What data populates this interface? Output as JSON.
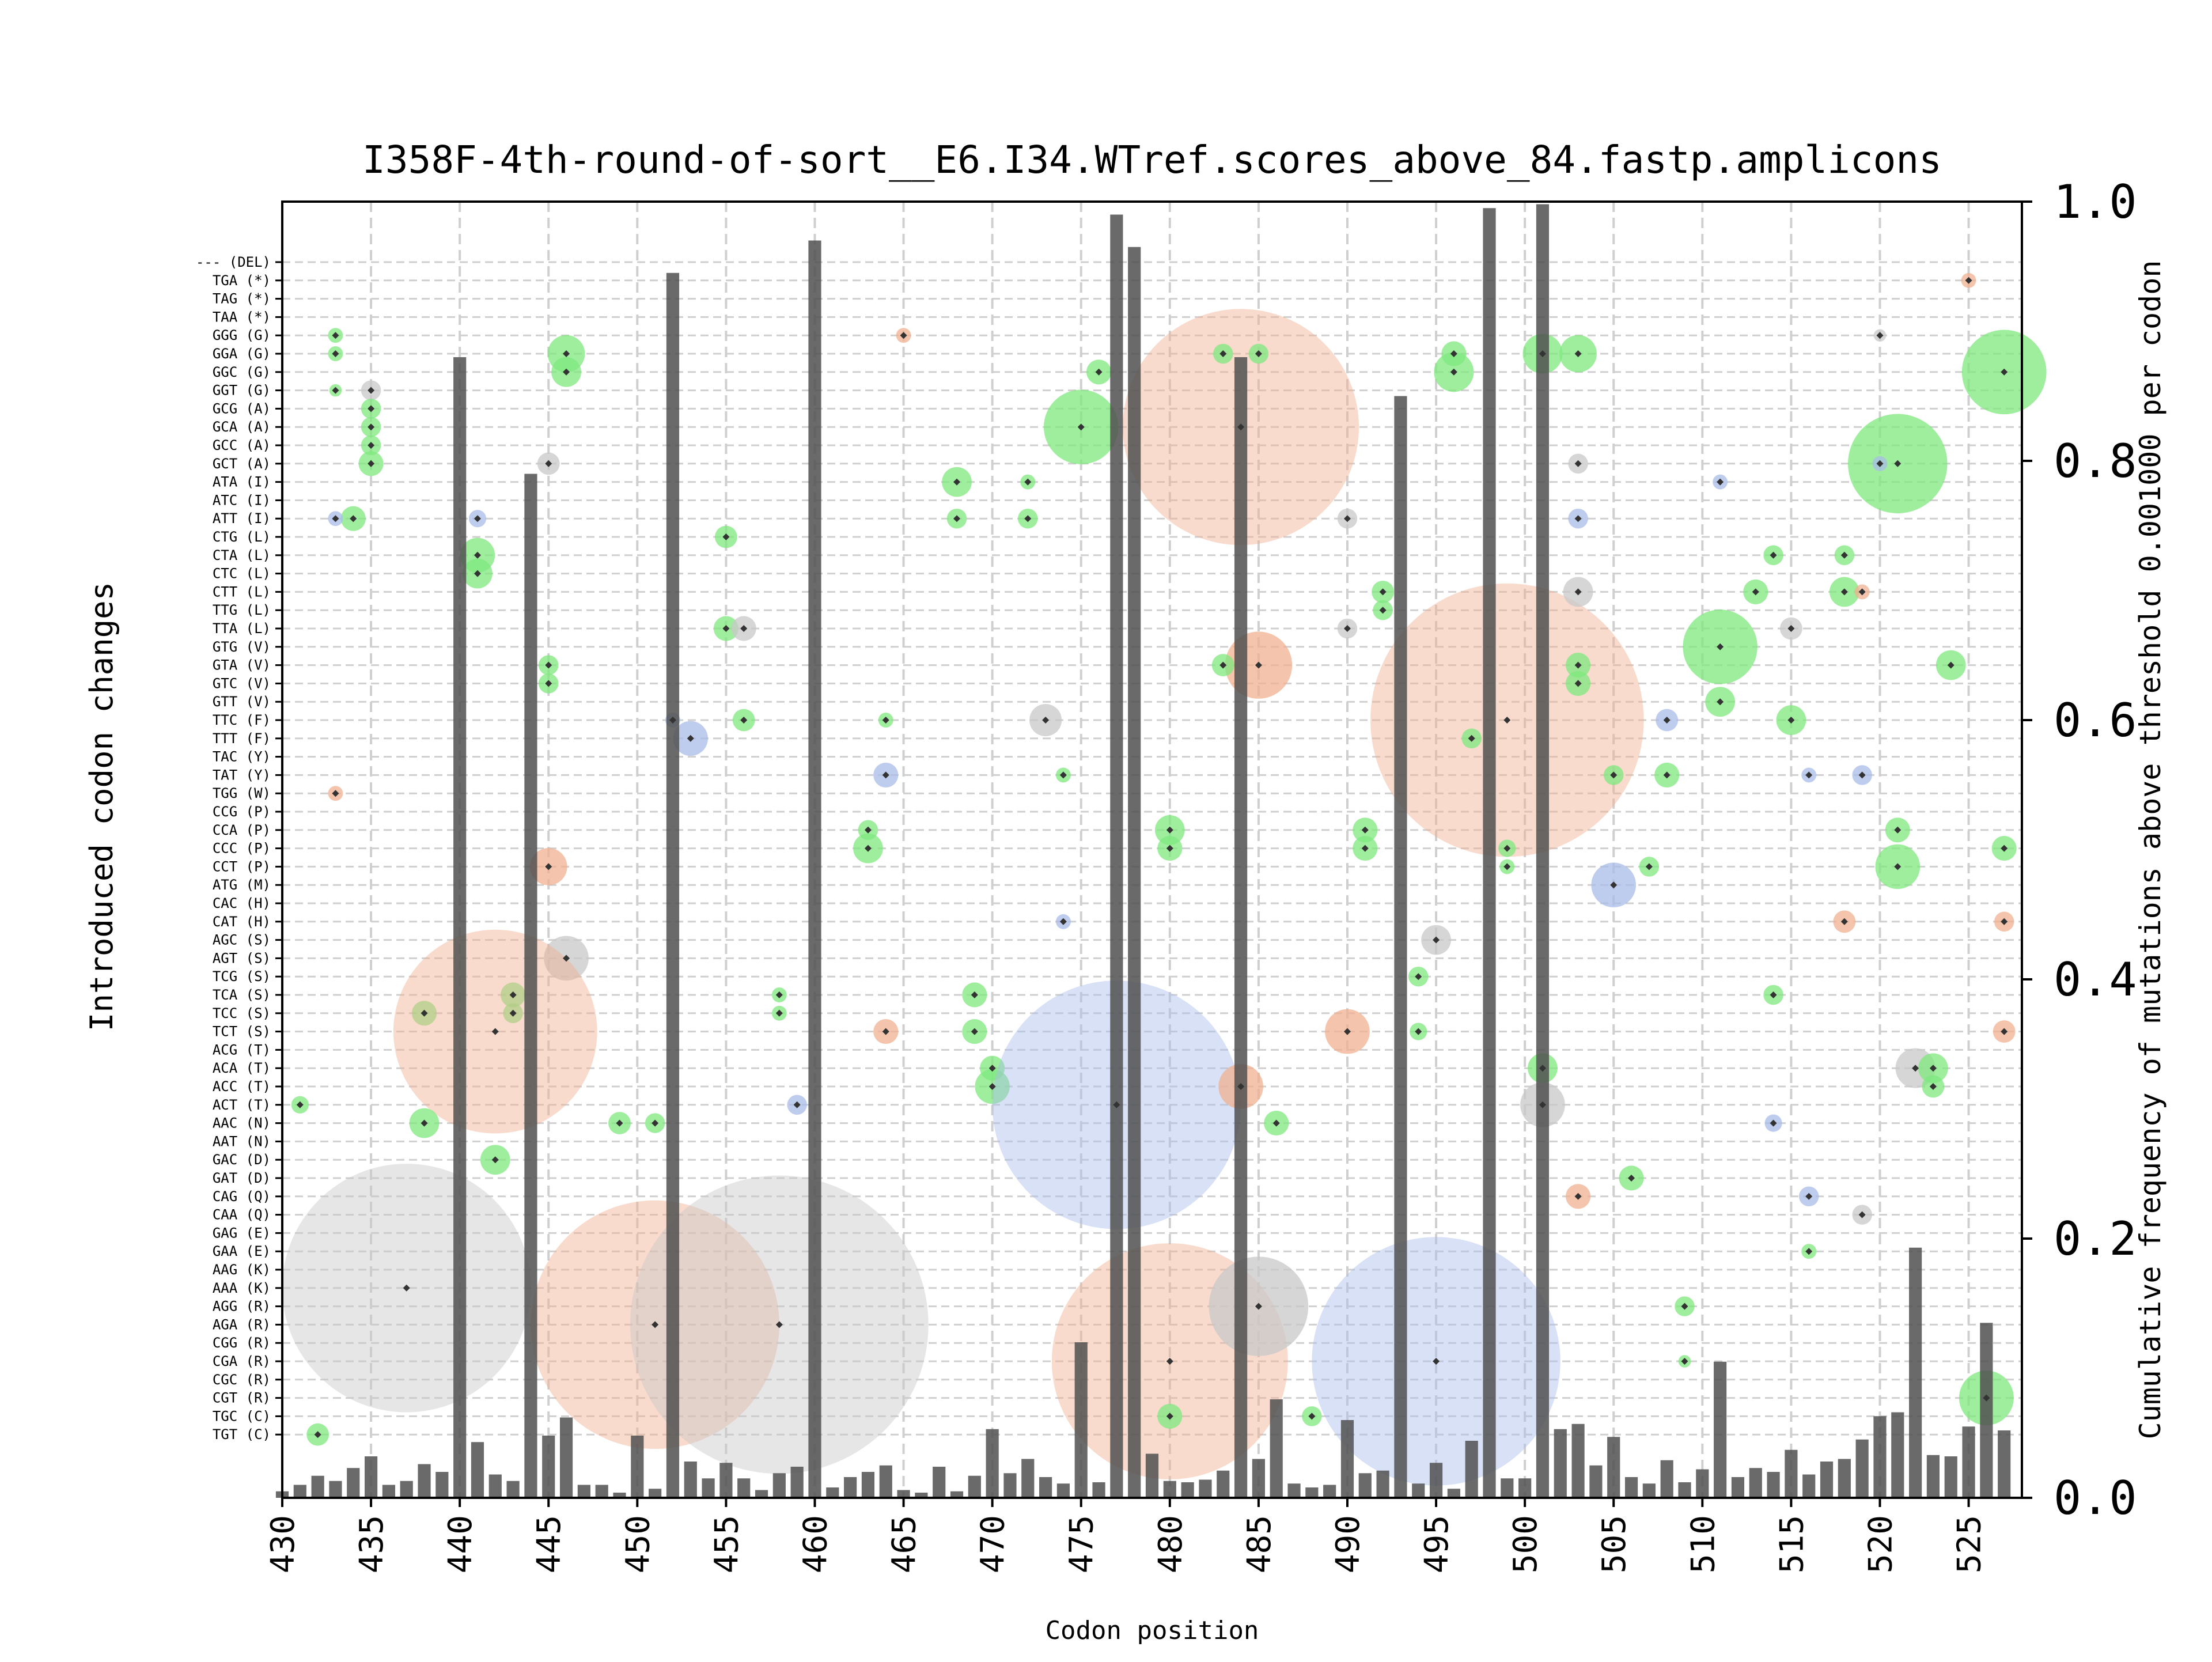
{
  "chart_data": {
    "type": "scatter",
    "title": "I358F-4th-round-of-sort__E6.I34.WTref.scores_above_84.fastp.amplicons",
    "xlabel": "Codon position",
    "ylabel_left": "Introduced codon changes",
    "ylabel_right": "Cumulative frequency of mutations above threshold 0.001000 per codon",
    "xlim": [
      430,
      528
    ],
    "x_ticks": [
      "430",
      "435",
      "440",
      "445",
      "450",
      "455",
      "460",
      "465",
      "470",
      "475",
      "480",
      "485",
      "490",
      "495",
      "500",
      "505",
      "510",
      "515",
      "520",
      "525"
    ],
    "right_ylim": [
      0.0,
      1.0
    ],
    "right_ticks": [
      "0.0",
      "0.2",
      "0.4",
      "0.6",
      "0.8",
      "1.0"
    ],
    "grid": "dashed",
    "colors": {
      "bar": "#505050",
      "green": "#7ee87e",
      "orange": "#f0b090",
      "blue": "#a8bce8",
      "gray": "#c8c8c8",
      "marker": "#333333"
    },
    "codon_labels": [
      "--- (DEL)",
      "TGA (*)",
      "TAG (*)",
      "TAA (*)",
      "GGG (G)",
      "GGA (G)",
      "GGC (G)",
      "GGT (G)",
      "GCG (A)",
      "GCA (A)",
      "GCC (A)",
      "GCT (A)",
      "ATA (I)",
      "ATC (I)",
      "ATT (I)",
      "CTG (L)",
      "CTA (L)",
      "CTC (L)",
      "CTT (L)",
      "TTG (L)",
      "TTA (L)",
      "GTG (V)",
      "GTA (V)",
      "GTC (V)",
      "GTT (V)",
      "TTC (F)",
      "TTT (F)",
      "TAC (Y)",
      "TAT (Y)",
      "TGG (W)",
      "CCG (P)",
      "CCA (P)",
      "CCC (P)",
      "CCT (P)",
      "ATG (M)",
      "CAC (H)",
      "CAT (H)",
      "AGC (S)",
      "AGT (S)",
      "TCG (S)",
      "TCA (S)",
      "TCC (S)",
      "TCT (S)",
      "ACG (T)",
      "ACA (T)",
      "ACC (T)",
      "ACT (T)",
      "AAC (N)",
      "AAT (N)",
      "GAC (D)",
      "GAT (D)",
      "CAG (Q)",
      "CAA (Q)",
      "GAG (E)",
      "GAA (E)",
      "AAG (K)",
      "AAA (K)",
      "AGG (R)",
      "AGA (R)",
      "CGG (R)",
      "CGA (R)",
      "CGC (R)",
      "CGT (R)",
      "TGC (C)",
      "TGT (C)"
    ],
    "bars": {
      "x": [
        430,
        431,
        432,
        433,
        434,
        435,
        436,
        437,
        438,
        439,
        440,
        441,
        442,
        443,
        444,
        445,
        446,
        447,
        448,
        449,
        450,
        451,
        452,
        453,
        454,
        455,
        456,
        457,
        458,
        459,
        460,
        461,
        462,
        463,
        464,
        465,
        466,
        467,
        468,
        469,
        470,
        471,
        472,
        473,
        474,
        475,
        476,
        477,
        478,
        479,
        480,
        481,
        482,
        483,
        484,
        485,
        486,
        487,
        488,
        489,
        490,
        491,
        492,
        493,
        494,
        495,
        496,
        497,
        498,
        499,
        500,
        501,
        502,
        503,
        504,
        505,
        506,
        507,
        508,
        509,
        510,
        511,
        512,
        513,
        514,
        515,
        516,
        517,
        518,
        519,
        520,
        521,
        522,
        523,
        524,
        525,
        526,
        527
      ],
      "y": [
        0.005,
        0.01,
        0.017,
        0.013,
        0.023,
        0.032,
        0.01,
        0.013,
        0.026,
        0.02,
        0.88,
        0.043,
        0.018,
        0.013,
        0.79,
        0.048,
        0.062,
        0.01,
        0.01,
        0.004,
        0.048,
        0.007,
        0.945,
        0.028,
        0.015,
        0.027,
        0.015,
        0.006,
        0.019,
        0.024,
        0.97,
        0.008,
        0.016,
        0.02,
        0.025,
        0.006,
        0.004,
        0.024,
        0.005,
        0.017,
        0.053,
        0.019,
        0.03,
        0.016,
        0.011,
        0.12,
        0.012,
        0.99,
        0.965,
        0.034,
        0.013,
        0.012,
        0.014,
        0.021,
        0.88,
        0.03,
        0.076,
        0.011,
        0.008,
        0.01,
        0.06,
        0.019,
        0.021,
        0.85,
        0.011,
        0.027,
        0.007,
        0.044,
        0.995,
        0.015,
        0.015,
        0.998,
        0.053,
        0.057,
        0.025,
        0.047,
        0.016,
        0.011,
        0.029,
        0.012,
        0.022,
        0.105,
        0.016,
        0.023,
        0.02,
        0.037,
        0.018,
        0.028,
        0.03,
        0.045,
        0.063,
        0.066,
        0.193,
        0.033,
        0.032,
        0.055,
        0.135,
        0.052
      ]
    },
    "bubbles": [
      {
        "x": 433,
        "codon": "GGG (G)",
        "c": "green",
        "r": 0.6
      },
      {
        "x": 433,
        "codon": "GGA (G)",
        "c": "green",
        "r": 0.6
      },
      {
        "x": 433,
        "codon": "GGT (G)",
        "c": "green",
        "r": 0.5
      },
      {
        "x": 435,
        "codon": "GGT (G)",
        "c": "gray",
        "r": 0.8
      },
      {
        "x": 435,
        "codon": "GCG (A)",
        "c": "green",
        "r": 0.8
      },
      {
        "x": 435,
        "codon": "GCA (A)",
        "c": "green",
        "r": 0.8
      },
      {
        "x": 435,
        "codon": "GCC (A)",
        "c": "green",
        "r": 0.8
      },
      {
        "x": 435,
        "codon": "GCT (A)",
        "c": "green",
        "r": 1.0
      },
      {
        "x": 434,
        "codon": "ATT (I)",
        "c": "green",
        "r": 1.0
      },
      {
        "x": 433,
        "codon": "ATT (I)",
        "c": "blue",
        "r": 0.6
      },
      {
        "x": 446,
        "codon": "GGA (G)",
        "c": "green",
        "r": 1.5
      },
      {
        "x": 446,
        "codon": "GGC (G)",
        "c": "green",
        "r": 1.2
      },
      {
        "x": 441,
        "codon": "CTA (L)",
        "c": "green",
        "r": 1.4
      },
      {
        "x": 441,
        "codon": "CTC (L)",
        "c": "green",
        "r": 1.2
      },
      {
        "x": 441,
        "codon": "ATT (I)",
        "c": "blue",
        "r": 0.7
      },
      {
        "x": 445,
        "codon": "GCT (A)",
        "c": "gray",
        "r": 0.9
      },
      {
        "x": 445,
        "codon": "GTA (V)",
        "c": "green",
        "r": 0.8
      },
      {
        "x": 445,
        "codon": "GTC (V)",
        "c": "green",
        "r": 0.8
      },
      {
        "x": 453,
        "codon": "TTT (F)",
        "c": "blue",
        "r": 1.4
      },
      {
        "x": 452,
        "codon": "TTC (F)",
        "c": "blue",
        "r": 0.6
      },
      {
        "x": 455,
        "codon": "CTG (L)",
        "c": "green",
        "r": 0.9
      },
      {
        "x": 455,
        "codon": "TTA (L)",
        "c": "green",
        "r": 1.0
      },
      {
        "x": 456,
        "codon": "TTA (L)",
        "c": "gray",
        "r": 1.0
      },
      {
        "x": 456,
        "codon": "TTC (F)",
        "c": "green",
        "r": 0.9
      },
      {
        "x": 445,
        "codon": "CCT (P)",
        "c": "orange",
        "r": 1.5
      },
      {
        "x": 433,
        "codon": "TGG (W)",
        "c": "orange",
        "r": 0.6
      },
      {
        "x": 446,
        "codon": "AGT (S)",
        "c": "gray",
        "r": 1.8
      },
      {
        "x": 438,
        "codon": "TCC (S)",
        "c": "green",
        "r": 1.0
      },
      {
        "x": 443,
        "codon": "TCA (S)",
        "c": "green",
        "r": 1.0
      },
      {
        "x": 443,
        "codon": "TCC (S)",
        "c": "green",
        "r": 0.8
      },
      {
        "x": 442,
        "codon": "TCT (S)",
        "c": "orange",
        "r": 8.2
      },
      {
        "x": 442,
        "codon": "GAC (D)",
        "c": "green",
        "r": 1.2
      },
      {
        "x": 438,
        "codon": "AAC (N)",
        "c": "green",
        "r": 1.2
      },
      {
        "x": 449,
        "codon": "AAC (N)",
        "c": "green",
        "r": 0.9
      },
      {
        "x": 451,
        "codon": "AAC (N)",
        "c": "green",
        "r": 0.8
      },
      {
        "x": 437,
        "codon": "AAA (K)",
        "c": "gray",
        "r": 10.0
      },
      {
        "x": 451,
        "codon": "AGA (R)",
        "c": "orange",
        "r": 10.0
      },
      {
        "x": 458,
        "codon": "AGA (R)",
        "c": "gray",
        "r": 12.0
      },
      {
        "x": 458,
        "codon": "TCA (S)",
        "c": "green",
        "r": 0.6
      },
      {
        "x": 458,
        "codon": "TCC (S)",
        "c": "green",
        "r": 0.6
      },
      {
        "x": 459,
        "codon": "ACT (T)",
        "c": "blue",
        "r": 0.8
      },
      {
        "x": 463,
        "codon": "CCC (P)",
        "c": "green",
        "r": 1.2
      },
      {
        "x": 463,
        "codon": "CCA (P)",
        "c": "green",
        "r": 0.8
      },
      {
        "x": 464,
        "codon": "TAT (Y)",
        "c": "blue",
        "r": 1.0
      },
      {
        "x": 464,
        "codon": "TCT (S)",
        "c": "orange",
        "r": 1.0
      },
      {
        "x": 464,
        "codon": "TTC (F)",
        "c": "green",
        "r": 0.6
      },
      {
        "x": 468,
        "codon": "ATA (I)",
        "c": "green",
        "r": 1.2
      },
      {
        "x": 468,
        "codon": "ATT (I)",
        "c": "green",
        "r": 0.8
      },
      {
        "x": 469,
        "codon": "TCA (S)",
        "c": "green",
        "r": 1.0
      },
      {
        "x": 469,
        "codon": "TCT (S)",
        "c": "green",
        "r": 1.0
      },
      {
        "x": 470,
        "codon": "ACC (T)",
        "c": "green",
        "r": 1.4
      },
      {
        "x": 470,
        "codon": "ACA (T)",
        "c": "green",
        "r": 1.0
      },
      {
        "x": 475,
        "codon": "GCA (A)",
        "c": "green",
        "r": 3.0
      },
      {
        "x": 476,
        "codon": "GGC (G)",
        "c": "green",
        "r": 1.0
      },
      {
        "x": 473,
        "codon": "TTC (F)",
        "c": "gray",
        "r": 1.3
      },
      {
        "x": 474,
        "codon": "TAT (Y)",
        "c": "green",
        "r": 0.6
      },
      {
        "x": 472,
        "codon": "ATT (I)",
        "c": "green",
        "r": 0.8
      },
      {
        "x": 472,
        "codon": "ATA (I)",
        "c": "green",
        "r": 0.6
      },
      {
        "x": 477,
        "codon": "ACT (T)",
        "c": "blue",
        "r": 10.0
      },
      {
        "x": 480,
        "codon": "CGA (R)",
        "c": "orange",
        "r": 9.5
      },
      {
        "x": 480,
        "codon": "CCA (P)",
        "c": "green",
        "r": 1.2
      },
      {
        "x": 480,
        "codon": "CCC (P)",
        "c": "green",
        "r": 1.0
      },
      {
        "x": 484,
        "codon": "GCA (A)",
        "c": "orange",
        "r": 9.5
      },
      {
        "x": 483,
        "codon": "GGA (G)",
        "c": "green",
        "r": 0.8
      },
      {
        "x": 485,
        "codon": "GGA (G)",
        "c": "green",
        "r": 0.8
      },
      {
        "x": 484,
        "codon": "ACC (T)",
        "c": "orange",
        "r": 1.8
      },
      {
        "x": 485,
        "codon": "GTA (V)",
        "c": "orange",
        "r": 2.7
      },
      {
        "x": 483,
        "codon": "GTA (V)",
        "c": "green",
        "r": 0.9
      },
      {
        "x": 486,
        "codon": "AAC (N)",
        "c": "green",
        "r": 1.0
      },
      {
        "x": 485,
        "codon": "AGG (R)",
        "c": "gray",
        "r": 4.0
      },
      {
        "x": 480,
        "codon": "TGC (C)",
        "c": "green",
        "r": 1.0
      },
      {
        "x": 488,
        "codon": "TGC (C)",
        "c": "green",
        "r": 0.8
      },
      {
        "x": 490,
        "codon": "TCT (S)",
        "c": "orange",
        "r": 1.8
      },
      {
        "x": 490,
        "codon": "TTA (L)",
        "c": "gray",
        "r": 0.8
      },
      {
        "x": 490,
        "codon": "ATT (I)",
        "c": "gray",
        "r": 0.8
      },
      {
        "x": 492,
        "codon": "CTT (L)",
        "c": "green",
        "r": 0.9
      },
      {
        "x": 492,
        "codon": "TTG (L)",
        "c": "green",
        "r": 0.8
      },
      {
        "x": 491,
        "codon": "CCA (P)",
        "c": "green",
        "r": 1.0
      },
      {
        "x": 491,
        "codon": "CCC (P)",
        "c": "green",
        "r": 1.0
      },
      {
        "x": 494,
        "codon": "TCG (S)",
        "c": "green",
        "r": 0.8
      },
      {
        "x": 494,
        "codon": "TCT (S)",
        "c": "green",
        "r": 0.7
      },
      {
        "x": 496,
        "codon": "GGC (G)",
        "c": "green",
        "r": 1.6
      },
      {
        "x": 496,
        "codon": "GGA (G)",
        "c": "green",
        "r": 1.0
      },
      {
        "x": 495,
        "codon": "AGC (S)",
        "c": "gray",
        "r": 1.2
      },
      {
        "x": 495,
        "codon": "CGA (R)",
        "c": "blue",
        "r": 10.0
      },
      {
        "x": 499,
        "codon": "TTC (F)",
        "c": "orange",
        "r": 11.0
      },
      {
        "x": 497,
        "codon": "TTT (F)",
        "c": "green",
        "r": 0.8
      },
      {
        "x": 499,
        "codon": "CCC (P)",
        "c": "green",
        "r": 0.7
      },
      {
        "x": 499,
        "codon": "CCT (P)",
        "c": "green",
        "r": 0.6
      },
      {
        "x": 501,
        "codon": "ACA (T)",
        "c": "green",
        "r": 1.2
      },
      {
        "x": 501,
        "codon": "ACT (T)",
        "c": "gray",
        "r": 1.8
      },
      {
        "x": 501,
        "codon": "GGA (G)",
        "c": "green",
        "r": 1.6
      },
      {
        "x": 503,
        "codon": "GGA (G)",
        "c": "green",
        "r": 1.5
      },
      {
        "x": 503,
        "codon": "GTA (V)",
        "c": "green",
        "r": 1.0
      },
      {
        "x": 503,
        "codon": "GTC (V)",
        "c": "green",
        "r": 1.0
      },
      {
        "x": 503,
        "codon": "ATT (I)",
        "c": "blue",
        "r": 0.8
      },
      {
        "x": 503,
        "codon": "CTT (L)",
        "c": "gray",
        "r": 1.2
      },
      {
        "x": 503,
        "codon": "GCT (A)",
        "c": "gray",
        "r": 0.8
      },
      {
        "x": 503,
        "codon": "CAG (Q)",
        "c": "orange",
        "r": 1.0
      },
      {
        "x": 505,
        "codon": "ATG (M)",
        "c": "blue",
        "r": 1.8
      },
      {
        "x": 505,
        "codon": "TAT (Y)",
        "c": "green",
        "r": 0.8
      },
      {
        "x": 506,
        "codon": "GAT (D)",
        "c": "green",
        "r": 1.0
      },
      {
        "x": 508,
        "codon": "TTC (F)",
        "c": "blue",
        "r": 0.9
      },
      {
        "x": 508,
        "codon": "TAT (Y)",
        "c": "green",
        "r": 1.0
      },
      {
        "x": 507,
        "codon": "CCT (P)",
        "c": "green",
        "r": 0.8
      },
      {
        "x": 511,
        "codon": "GTG (V)",
        "c": "green",
        "r": 3.0
      },
      {
        "x": 511,
        "codon": "GTT (V)",
        "c": "green",
        "r": 1.2
      },
      {
        "x": 509,
        "codon": "AGG (R)",
        "c": "green",
        "r": 0.8
      },
      {
        "x": 509,
        "codon": "CGA (R)",
        "c": "green",
        "r": 0.5
      },
      {
        "x": 511,
        "codon": "ATA (I)",
        "c": "blue",
        "r": 0.6
      },
      {
        "x": 514,
        "codon": "CTA (L)",
        "c": "green",
        "r": 0.8
      },
      {
        "x": 513,
        "codon": "CTT (L)",
        "c": "green",
        "r": 1.0
      },
      {
        "x": 515,
        "codon": "TTC (F)",
        "c": "green",
        "r": 1.2
      },
      {
        "x": 515,
        "codon": "TTA (L)",
        "c": "gray",
        "r": 0.9
      },
      {
        "x": 514,
        "codon": "TCA (S)",
        "c": "green",
        "r": 0.8
      },
      {
        "x": 514,
        "codon": "AAC (N)",
        "c": "blue",
        "r": 0.7
      },
      {
        "x": 516,
        "codon": "CAG (Q)",
        "c": "blue",
        "r": 0.8
      },
      {
        "x": 516,
        "codon": "GAA (E)",
        "c": "green",
        "r": 0.6
      },
      {
        "x": 516,
        "codon": "TAT (Y)",
        "c": "blue",
        "r": 0.6
      },
      {
        "x": 518,
        "codon": "CTA (L)",
        "c": "green",
        "r": 0.8
      },
      {
        "x": 518,
        "codon": "CTT (L)",
        "c": "green",
        "r": 1.2
      },
      {
        "x": 518,
        "codon": "CAT (H)",
        "c": "orange",
        "r": 0.9
      },
      {
        "x": 519,
        "codon": "TAT (Y)",
        "c": "blue",
        "r": 0.8
      },
      {
        "x": 519,
        "codon": "CAA (Q)",
        "c": "gray",
        "r": 0.8
      },
      {
        "x": 521,
        "codon": "GCT (A)",
        "c": "green",
        "r": 4.0
      },
      {
        "x": 521,
        "codon": "CCA (P)",
        "c": "green",
        "r": 1.0
      },
      {
        "x": 521,
        "codon": "CCT (P)",
        "c": "green",
        "r": 1.8
      },
      {
        "x": 522,
        "codon": "ACA (T)",
        "c": "gray",
        "r": 1.6
      },
      {
        "x": 523,
        "codon": "ACA (T)",
        "c": "green",
        "r": 1.2
      },
      {
        "x": 523,
        "codon": "ACC (T)",
        "c": "green",
        "r": 0.9
      },
      {
        "x": 524,
        "codon": "GTA (V)",
        "c": "green",
        "r": 1.2
      },
      {
        "x": 527,
        "codon": "GGC (G)",
        "c": "green",
        "r": 3.4
      },
      {
        "x": 526,
        "codon": "CGT (R)",
        "c": "green",
        "r": 2.2
      },
      {
        "x": 527,
        "codon": "CCC (P)",
        "c": "green",
        "r": 1.0
      },
      {
        "x": 527,
        "codon": "CAT (H)",
        "c": "orange",
        "r": 0.8
      },
      {
        "x": 527,
        "codon": "TCT (S)",
        "c": "orange",
        "r": 0.9
      },
      {
        "x": 520,
        "codon": "GCT (A)",
        "c": "blue",
        "r": 0.6
      },
      {
        "x": 519,
        "codon": "CTT (L)",
        "c": "orange",
        "r": 0.6
      },
      {
        "x": 525,
        "codon": "TGA (*)",
        "c": "orange",
        "r": 0.6
      },
      {
        "x": 520,
        "codon": "GGG (G)",
        "c": "gray",
        "r": 0.5
      },
      {
        "x": 431,
        "codon": "ACT (T)",
        "c": "green",
        "r": 0.7
      },
      {
        "x": 432,
        "codon": "TGT (C)",
        "c": "green",
        "r": 0.9
      },
      {
        "x": 465,
        "codon": "GGG (G)",
        "c": "orange",
        "r": 0.6
      },
      {
        "x": 474,
        "codon": "CAT (H)",
        "c": "blue",
        "r": 0.6
      }
    ]
  }
}
